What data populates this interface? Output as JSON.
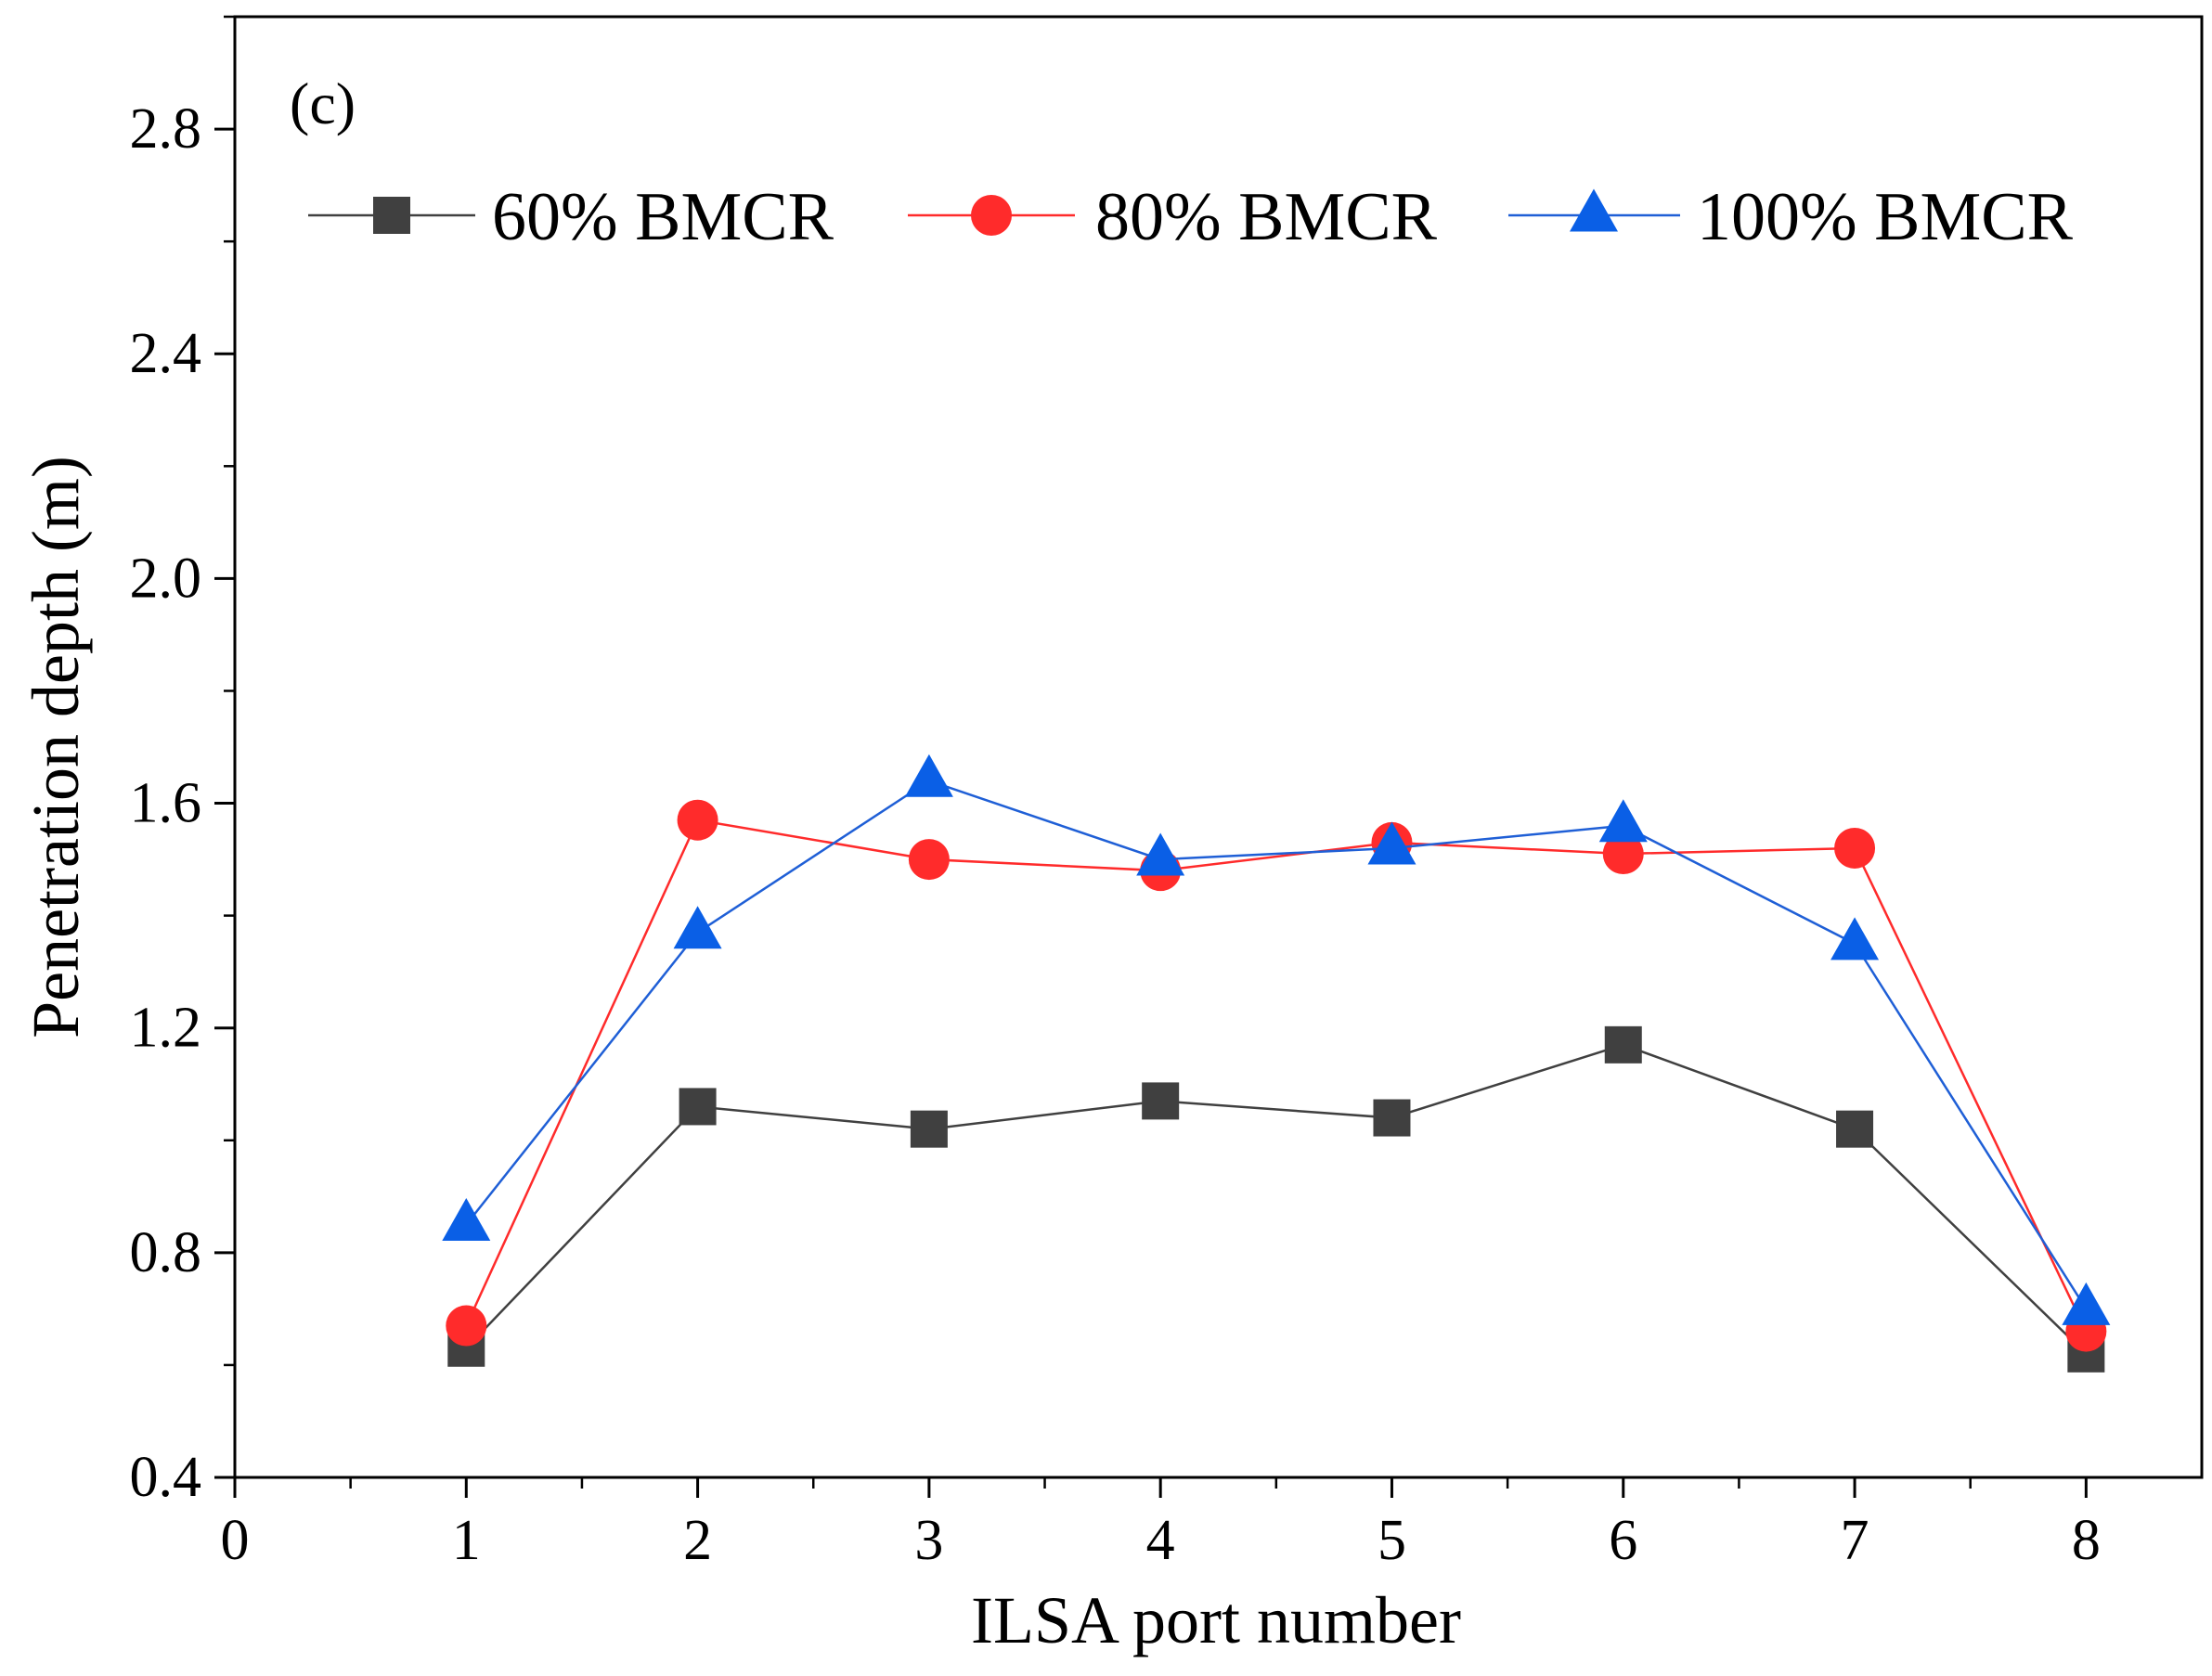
{
  "chart_data": {
    "type": "line",
    "panel_label": "(c)",
    "title": "",
    "xlabel": "ILSA port number",
    "ylabel": "Penetration depth (m)",
    "xlim": [
      0,
      8.5
    ],
    "ylim": [
      0.4,
      3.0
    ],
    "xticks": [
      "0",
      "1",
      "2",
      "3",
      "4",
      "5",
      "6",
      "7",
      "8"
    ],
    "yticks": [
      "0.4",
      "0.8",
      "1.2",
      "1.6",
      "2.0",
      "2.4",
      "2.8"
    ],
    "legend_position": "top",
    "x": [
      1,
      2,
      3,
      4,
      5,
      6,
      7,
      8
    ],
    "series": [
      {
        "name": "60% BMCR",
        "marker": "square",
        "color": "#404040",
        "line_color": "#404040",
        "values": [
          0.63,
          1.06,
          1.02,
          1.07,
          1.04,
          1.17,
          1.02,
          0.62
        ]
      },
      {
        "name": "80% BMCR",
        "marker": "circle",
        "color": "#ff2b2b",
        "line_color": "#ff2b2b",
        "values": [
          0.67,
          1.57,
          1.5,
          1.48,
          1.53,
          1.51,
          1.52,
          0.66
        ]
      },
      {
        "name": "100% BMCR",
        "marker": "triangle",
        "color": "#0a5fe6",
        "line_color": "#1f5fd6",
        "values": [
          0.85,
          1.37,
          1.64,
          1.5,
          1.52,
          1.56,
          1.35,
          0.7
        ]
      }
    ]
  }
}
